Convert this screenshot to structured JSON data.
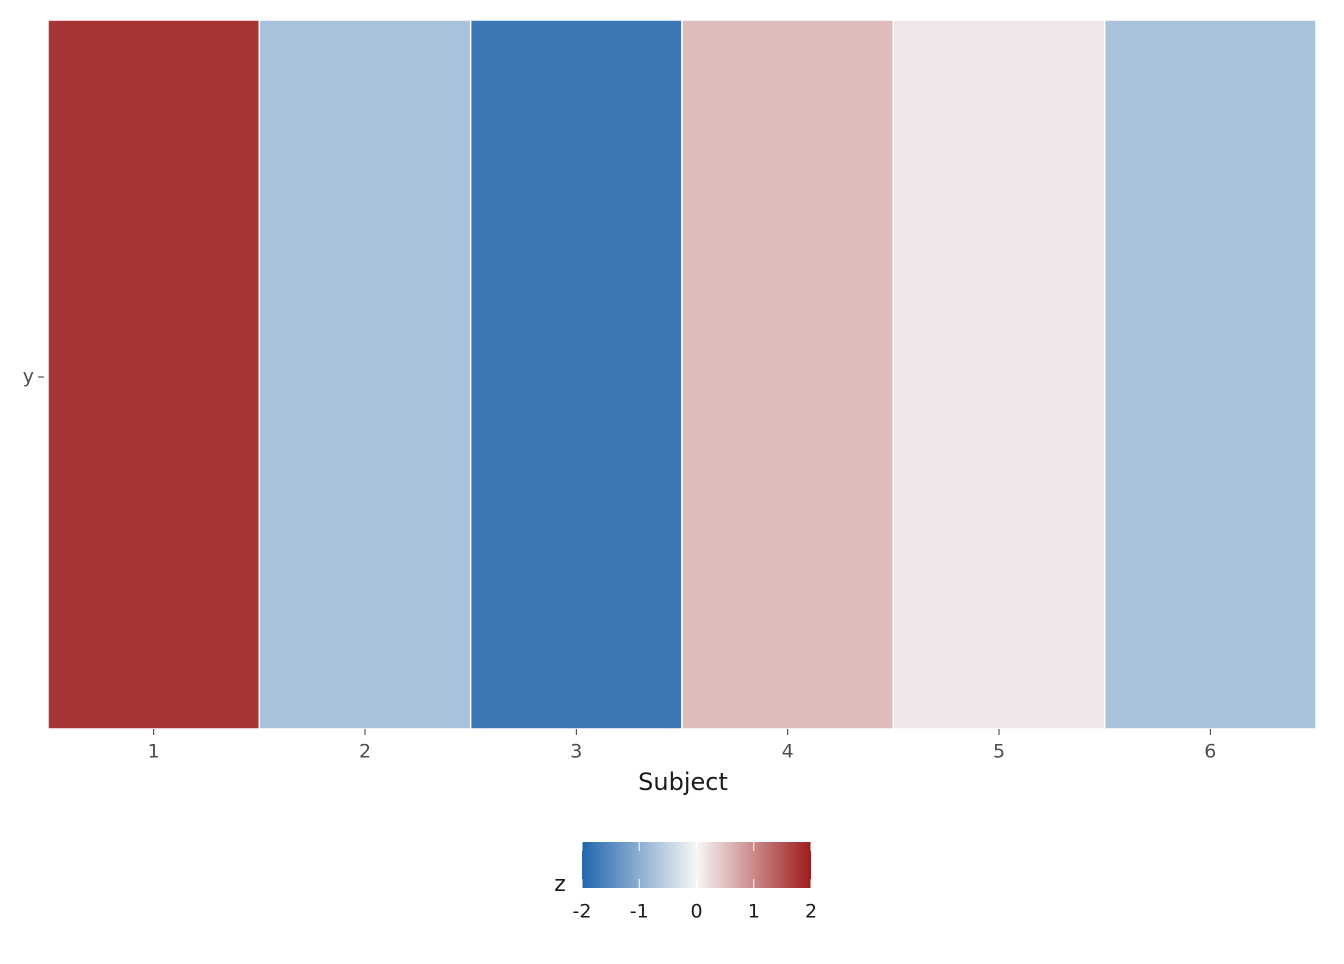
{
  "chart_data": {
    "type": "heatmap",
    "x_label": "Subject",
    "x": [
      1,
      2,
      3,
      4,
      5,
      6
    ],
    "y_categories": [
      "y"
    ],
    "values": [
      2,
      -0.8,
      -2,
      0.6,
      0.15,
      -0.8
    ],
    "xlim": [
      0.5,
      6.5
    ],
    "xticks": [
      1,
      2,
      3,
      4,
      5,
      6
    ],
    "legend_title": "z",
    "colorbar": {
      "lim": [
        -2,
        2
      ],
      "ticks": [
        -2,
        -1,
        0,
        1,
        2
      ],
      "colors": [
        "#2166ac",
        "#f7f7f7",
        "#9e1b1b"
      ]
    },
    "opacity": 0.88
  }
}
